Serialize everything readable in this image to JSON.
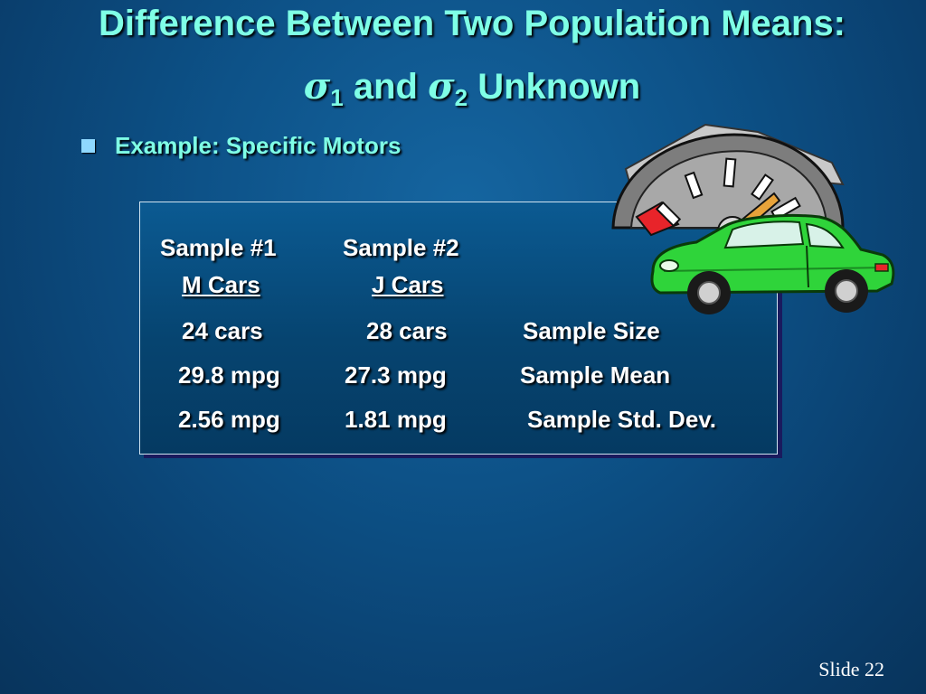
{
  "title": {
    "line1": "Difference Between Two Population Means:",
    "sigma_symbol": "σ",
    "sub1": "1",
    "connector": "and",
    "sub2": "2",
    "suffix": "Unknown"
  },
  "bullet": {
    "text": "Example:  Specific Motors"
  },
  "table": {
    "sample1_header": "Sample #1",
    "sample1_name": "M Cars",
    "sample2_header": "Sample #2",
    "sample2_name": "J Cars",
    "rows": [
      {
        "s1": "24 cars",
        "s2": "28 cars",
        "label": "Sample Size"
      },
      {
        "s1": "29.8 mpg",
        "s2": "27.3 mpg",
        "label": "Sample Mean"
      },
      {
        "s1": "2.56 mpg",
        "s2": "1.81 mpg",
        "label": "Sample Std. Dev."
      }
    ]
  },
  "footer": {
    "slide_label": "Slide 22"
  },
  "illustration": {
    "icon": "car-fuel-gauge-icon"
  }
}
